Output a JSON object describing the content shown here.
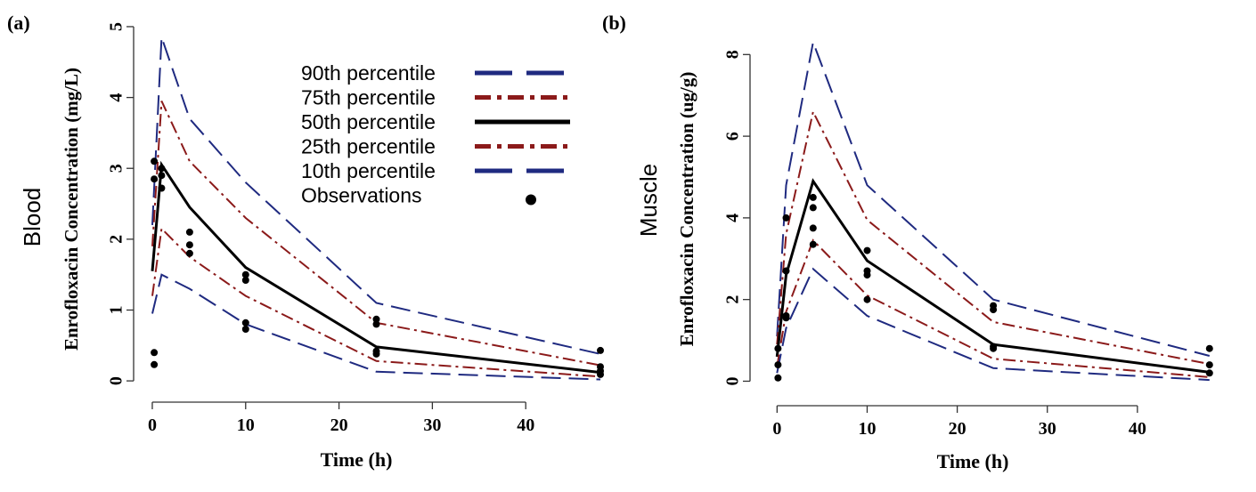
{
  "chart_data": [
    {
      "panel": "(a)",
      "type": "line",
      "tissue": "Blood",
      "ylabel": "Enrofloxacin Concentration (mg/L)",
      "xlabel": "Time (h)",
      "xlim": [
        -2,
        50
      ],
      "ylim": [
        -0.3,
        5.1
      ],
      "xticks": [
        0,
        10,
        20,
        30,
        40
      ],
      "yticks": [
        0,
        1,
        2,
        3,
        4,
        5
      ],
      "grid": false,
      "legend_position": "top-right",
      "legend": [
        {
          "label": "90th percentile",
          "style": "dashed",
          "color": "#1f2a80"
        },
        {
          "label": "75th percentile",
          "style": "dashdot",
          "color": "#8b1a1a"
        },
        {
          "label": "50th percentile",
          "style": "solid",
          "color": "#000000"
        },
        {
          "label": "25th percentile",
          "style": "dashdot",
          "color": "#8b1a1a"
        },
        {
          "label": "10th percentile",
          "style": "dashed",
          "color": "#1f2a80"
        },
        {
          "label": "Observations",
          "style": "point",
          "color": "#000000"
        }
      ],
      "series": [
        {
          "name": "90th percentile",
          "style": "dashed",
          "color": "#1f2a80",
          "x": [
            0,
            1,
            4,
            10,
            24,
            48
          ],
          "y": [
            2.2,
            4.85,
            3.7,
            2.8,
            1.1,
            0.38
          ]
        },
        {
          "name": "75th percentile",
          "style": "dashdot",
          "color": "#8b1a1a",
          "x": [
            0,
            1,
            4,
            10,
            24,
            48
          ],
          "y": [
            1.9,
            3.95,
            3.1,
            2.3,
            0.82,
            0.22
          ]
        },
        {
          "name": "50th percentile",
          "style": "solid",
          "color": "#000000",
          "x": [
            0,
            1,
            4,
            10,
            24,
            48
          ],
          "y": [
            1.55,
            3.05,
            2.45,
            1.6,
            0.48,
            0.12
          ]
        },
        {
          "name": "25th percentile",
          "style": "dashdot",
          "color": "#8b1a1a",
          "x": [
            0,
            1,
            4,
            10,
            24,
            48
          ],
          "y": [
            1.2,
            2.15,
            1.75,
            1.2,
            0.28,
            0.06
          ]
        },
        {
          "name": "10th percentile",
          "style": "dashed",
          "color": "#1f2a80",
          "x": [
            0,
            1,
            4,
            10,
            24,
            48
          ],
          "y": [
            0.95,
            1.5,
            1.3,
            0.8,
            0.13,
            0.02
          ]
        }
      ],
      "observations": [
        {
          "x": 0.2,
          "y": 3.1
        },
        {
          "x": 0.2,
          "y": 2.85
        },
        {
          "x": 0.2,
          "y": 0.4
        },
        {
          "x": 0.2,
          "y": 0.23
        },
        {
          "x": 1,
          "y": 3.0
        },
        {
          "x": 1,
          "y": 2.9
        },
        {
          "x": 1,
          "y": 2.72
        },
        {
          "x": 4,
          "y": 2.1
        },
        {
          "x": 4,
          "y": 1.92
        },
        {
          "x": 4,
          "y": 1.8
        },
        {
          "x": 10,
          "y": 1.5
        },
        {
          "x": 10,
          "y": 1.42
        },
        {
          "x": 10,
          "y": 0.82
        },
        {
          "x": 10,
          "y": 0.73
        },
        {
          "x": 24,
          "y": 0.87
        },
        {
          "x": 24,
          "y": 0.8
        },
        {
          "x": 24,
          "y": 0.42
        },
        {
          "x": 24,
          "y": 0.38
        },
        {
          "x": 48,
          "y": 0.43
        },
        {
          "x": 48,
          "y": 0.2
        },
        {
          "x": 48,
          "y": 0.14
        },
        {
          "x": 48,
          "y": 0.09
        }
      ]
    },
    {
      "panel": "(b)",
      "type": "line",
      "tissue": "Muscle",
      "ylabel": "Enrofloxacin Concentration (ug/g)",
      "xlabel": "Time (h)",
      "xlim": [
        -3,
        50
      ],
      "ylim": [
        -0.6,
        8.9
      ],
      "xticks": [
        0,
        10,
        20,
        30,
        40
      ],
      "yticks": [
        0,
        2,
        4,
        6,
        8
      ],
      "grid": false,
      "series": [
        {
          "name": "90th percentile",
          "style": "dashed",
          "color": "#1f2a80",
          "x": [
            0,
            1,
            4,
            10,
            24,
            48
          ],
          "y": [
            1.1,
            4.8,
            8.3,
            4.8,
            2.0,
            0.62
          ]
        },
        {
          "name": "75th percentile",
          "style": "dashdot",
          "color": "#8b1a1a",
          "x": [
            0,
            1,
            4,
            10,
            24,
            48
          ],
          "y": [
            0.9,
            3.6,
            6.6,
            3.95,
            1.45,
            0.42
          ]
        },
        {
          "name": "50th percentile",
          "style": "solid",
          "color": "#000000",
          "x": [
            0,
            1,
            4,
            10,
            24,
            48
          ],
          "y": [
            0.6,
            2.6,
            4.9,
            2.95,
            0.9,
            0.22
          ]
        },
        {
          "name": "25th percentile",
          "style": "dashdot",
          "color": "#8b1a1a",
          "x": [
            0,
            1,
            4,
            10,
            24,
            48
          ],
          "y": [
            0.35,
            1.7,
            3.45,
            2.1,
            0.55,
            0.1
          ]
        },
        {
          "name": "10th percentile",
          "style": "dashed",
          "color": "#1f2a80",
          "x": [
            0,
            1,
            4,
            10,
            24,
            48
          ],
          "y": [
            0.2,
            1.3,
            2.75,
            1.6,
            0.32,
            0.03
          ]
        }
      ],
      "observations": [
        {
          "x": 0.1,
          "y": 0.8
        },
        {
          "x": 0.1,
          "y": 0.4
        },
        {
          "x": 0.1,
          "y": 0.08
        },
        {
          "x": 1,
          "y": 4.0
        },
        {
          "x": 1,
          "y": 2.7
        },
        {
          "x": 1,
          "y": 1.6
        },
        {
          "x": 1,
          "y": 1.55
        },
        {
          "x": 4,
          "y": 4.5
        },
        {
          "x": 4,
          "y": 4.25
        },
        {
          "x": 4,
          "y": 3.75
        },
        {
          "x": 4,
          "y": 3.35
        },
        {
          "x": 10,
          "y": 3.2
        },
        {
          "x": 10,
          "y": 2.7
        },
        {
          "x": 10,
          "y": 2.6
        },
        {
          "x": 10,
          "y": 2.0
        },
        {
          "x": 24,
          "y": 1.85
        },
        {
          "x": 24,
          "y": 1.75
        },
        {
          "x": 24,
          "y": 0.85
        },
        {
          "x": 24,
          "y": 0.8
        },
        {
          "x": 48,
          "y": 0.8
        },
        {
          "x": 48,
          "y": 0.4
        },
        {
          "x": 48,
          "y": 0.2
        }
      ]
    }
  ]
}
